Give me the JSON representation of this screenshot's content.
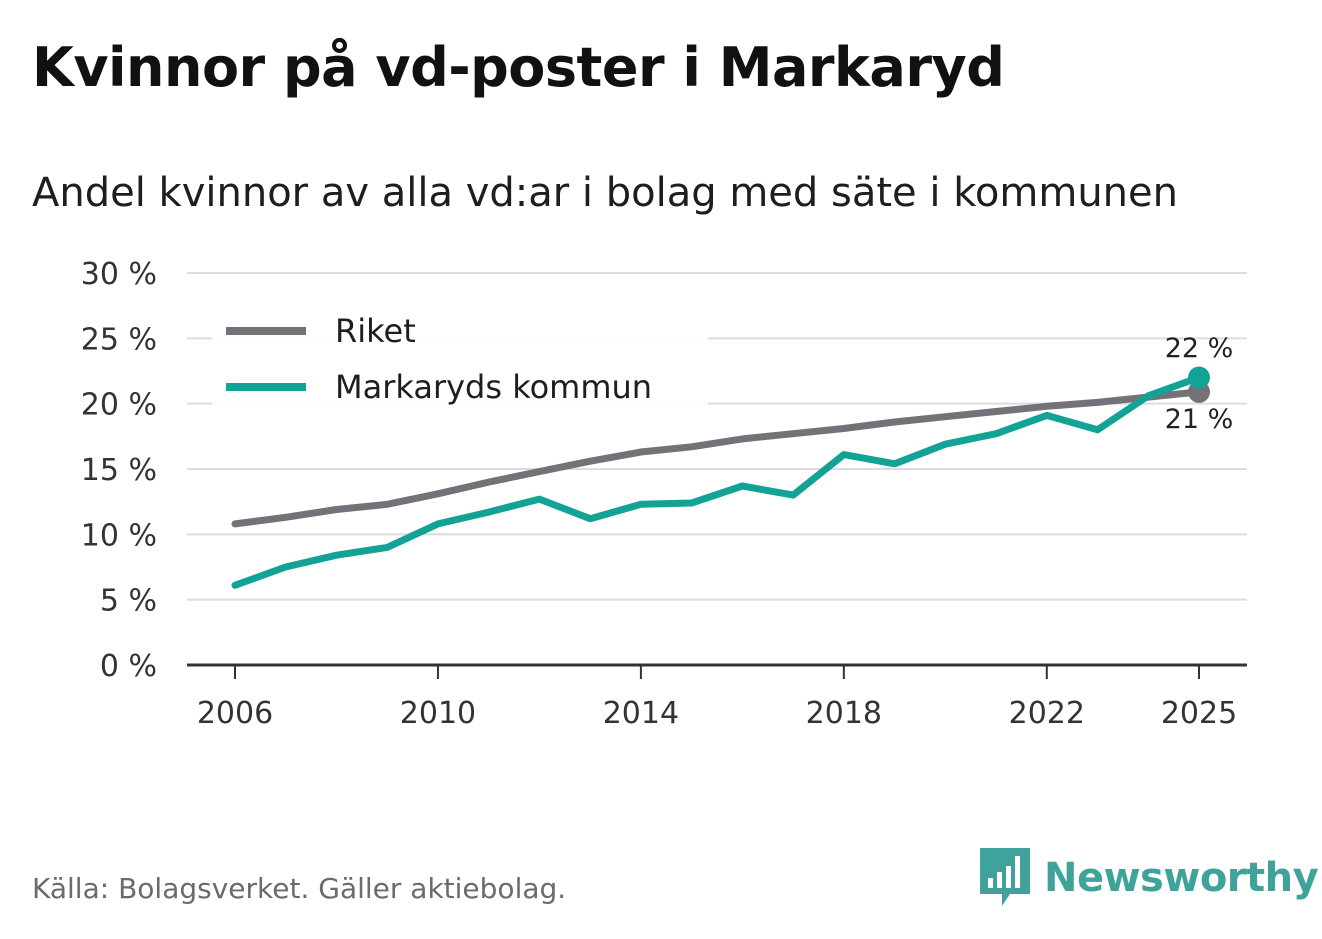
{
  "title": "Kvinnor på vd-poster i Markaryd",
  "subtitle": "Andel kvinnor av alla vd:ar i bolag med säte i kommunen",
  "source": "Källa: Bolagsverket. Gäller aktiebolag.",
  "brand": "Newsworthy",
  "colors": {
    "riket": "#737278",
    "markaryd": "#12a396",
    "grid": "#dcdcdc",
    "axis": "#333333",
    "brand": "#3fa39c"
  },
  "chart_data": {
    "type": "line",
    "title": "Kvinnor på vd-poster i Markaryd",
    "subtitle": "Andel kvinnor av alla vd:ar i bolag med säte i kommunen",
    "xlabel": "",
    "ylabel": "",
    "x": [
      2006,
      2007,
      2008,
      2009,
      2010,
      2011,
      2012,
      2013,
      2014,
      2015,
      2016,
      2017,
      2018,
      2019,
      2020,
      2021,
      2022,
      2023,
      2024,
      2025
    ],
    "x_ticks": [
      "2006",
      "2010",
      "2014",
      "2018",
      "2022",
      "2025"
    ],
    "y_ticks": [
      "0 %",
      "5 %",
      "10 %",
      "15 %",
      "20 %",
      "25 %",
      "30 %"
    ],
    "ylim": [
      0,
      30
    ],
    "grid": true,
    "legend_position": "top-left",
    "series": [
      {
        "name": "Riket",
        "values": [
          10.8,
          11.3,
          11.9,
          12.3,
          13.1,
          14.0,
          14.8,
          15.6,
          16.3,
          16.7,
          17.3,
          17.7,
          18.1,
          18.6,
          19.0,
          19.4,
          19.8,
          20.1,
          20.5,
          20.9
        ],
        "end_label": "21 %"
      },
      {
        "name": "Markaryds kommun",
        "values": [
          6.1,
          7.5,
          8.4,
          9.0,
          10.8,
          11.7,
          12.7,
          11.2,
          12.3,
          12.4,
          13.7,
          13.0,
          16.1,
          15.4,
          16.9,
          17.7,
          19.1,
          18.0,
          20.6,
          22.0
        ],
        "end_label": "22 %"
      }
    ]
  }
}
